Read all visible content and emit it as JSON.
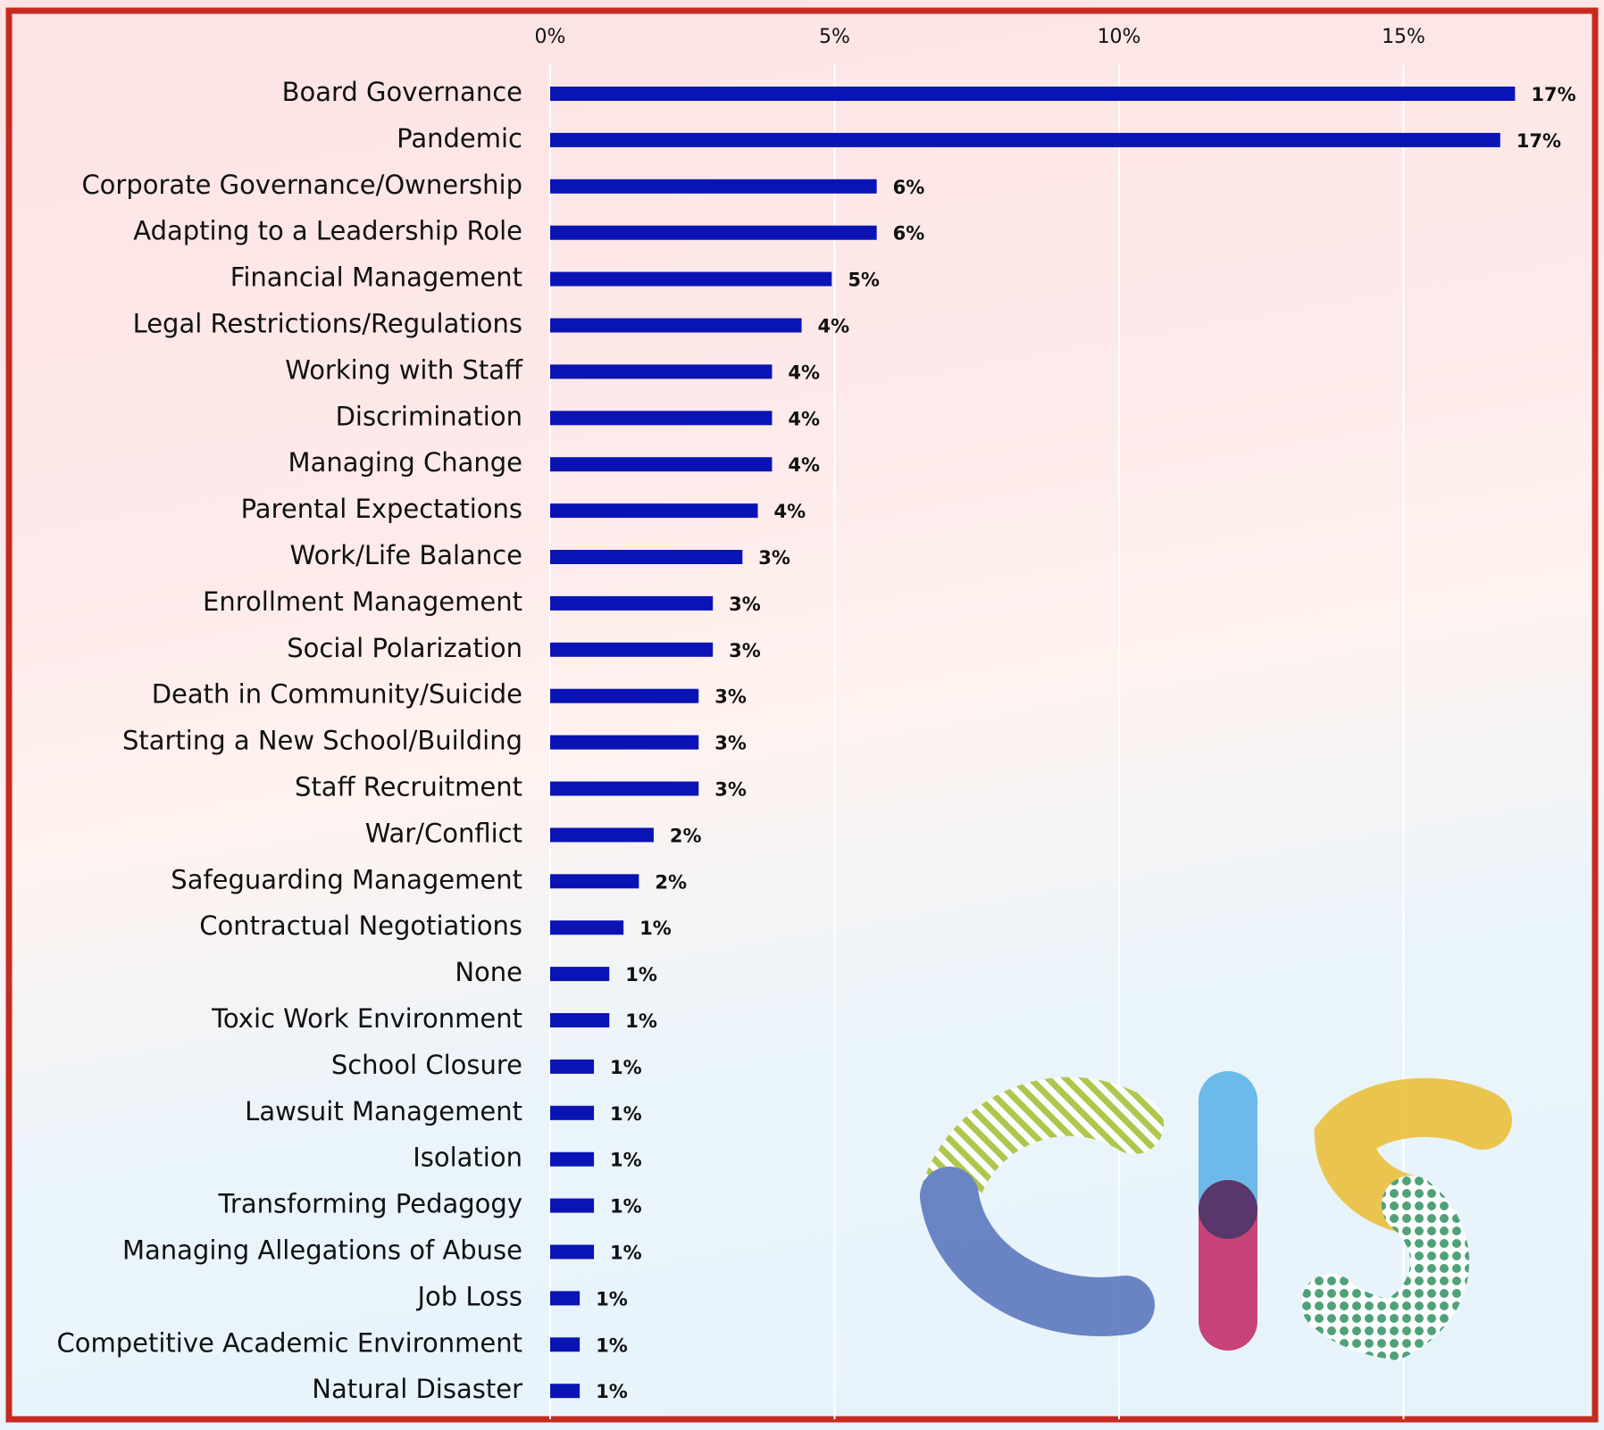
{
  "chart_data": {
    "type": "bar",
    "categories": [
      "Board Governance",
      "Pandemic",
      "Corporate Governance/Ownership",
      "Adapting to a Leadership Role",
      "Financial Management",
      "Legal Restrictions/Regulations",
      "Working with Staff",
      "Discrimination",
      "Managing Change",
      "Parental Expectations",
      "Work/Life Balance",
      "Enrollment Management",
      "Social Polarization",
      "Death in Community/Suicide",
      "Starting a New School/Building",
      "Staff Recruitment",
      "War/Conflict",
      "Safeguarding Management",
      "Contractual Negotiations",
      "None",
      "Toxic Work Environment",
      "School Closure",
      "Lawsuit Management",
      "Isolation",
      "Transforming Pedagogy",
      "Managing Allegations of Abuse",
      "Job Loss",
      "Competitive Academic Environment",
      "Natural Disaster"
    ],
    "values": [
      16.96,
      16.7,
      5.74,
      5.74,
      4.95,
      4.42,
      3.9,
      3.9,
      3.9,
      3.65,
      3.38,
      2.86,
      2.86,
      2.61,
      2.61,
      2.61,
      1.82,
      1.56,
      1.29,
      1.04,
      1.04,
      0.77,
      0.77,
      0.77,
      0.77,
      0.77,
      0.52,
      0.52,
      0.52
    ],
    "value_labels": [
      "17%",
      "17%",
      "6%",
      "6%",
      "5%",
      "4%",
      "4%",
      "4%",
      "4%",
      "4%",
      "3%",
      "3%",
      "3%",
      "3%",
      "3%",
      "3%",
      "2%",
      "2%",
      "1%",
      "1%",
      "1%",
      "1%",
      "1%",
      "1%",
      "1%",
      "1%",
      "1%",
      "1%",
      "1%"
    ],
    "color": "#0a14b4",
    "xlim": [
      0,
      18.1
    ],
    "xticks": [
      {
        "value": 0,
        "label": "0%"
      },
      {
        "value": 5,
        "label": "5%"
      },
      {
        "value": 10,
        "label": "10%"
      },
      {
        "value": 15,
        "label": "15%"
      }
    ],
    "grid": true
  }
}
